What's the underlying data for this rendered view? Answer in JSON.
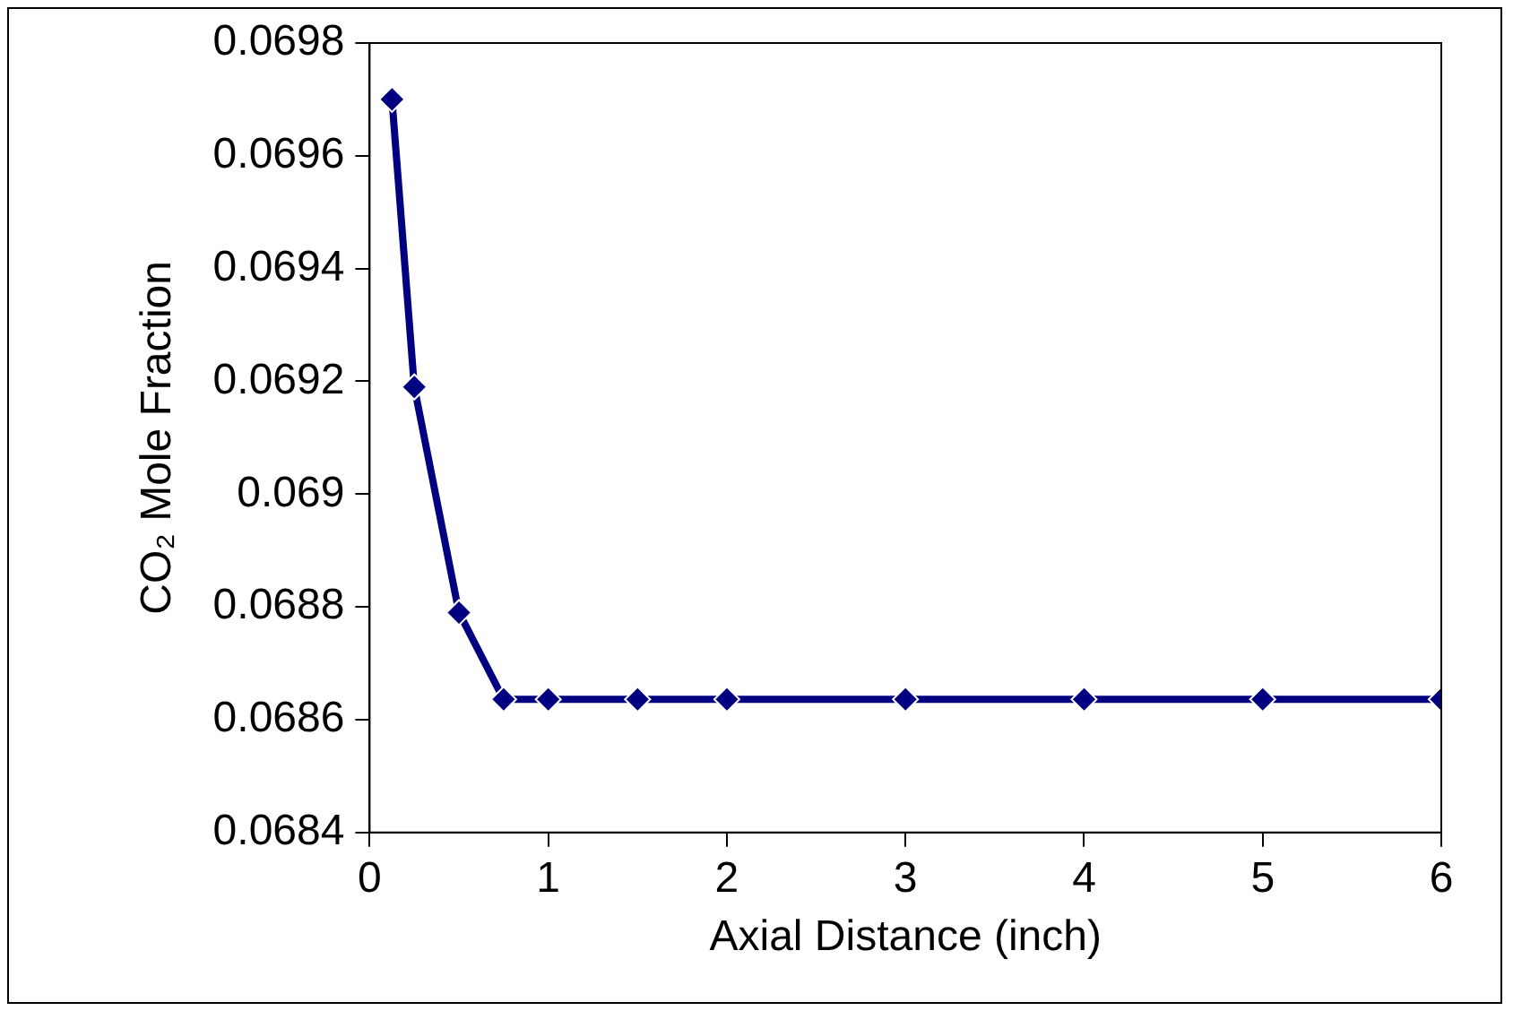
{
  "chart_data": {
    "type": "line",
    "xlabel": "Axial Distance (inch)",
    "ylabel": "CO₂ Mole Fraction",
    "x": [
      0.125,
      0.25,
      0.5,
      0.75,
      1,
      1.5,
      2,
      3,
      4,
      5,
      6
    ],
    "series": [
      {
        "color": "#000080",
        "values": [
          0.0697,
          0.06919,
          0.06879,
          0.068636,
          0.068636,
          0.068636,
          0.068636,
          0.068636,
          0.068636,
          0.068636,
          0.068636
        ]
      }
    ],
    "xlim": [
      0,
      6
    ],
    "xticks": [
      0,
      1,
      2,
      3,
      4,
      5,
      6
    ],
    "ylim": [
      0.0684,
      0.0698
    ],
    "yticks": [
      0.0684,
      0.0686,
      0.0688,
      0.069,
      0.0692,
      0.0694,
      0.0696,
      0.0698
    ],
    "grid": false,
    "legend": false,
    "marker": "diamond",
    "line_style": "solid"
  }
}
